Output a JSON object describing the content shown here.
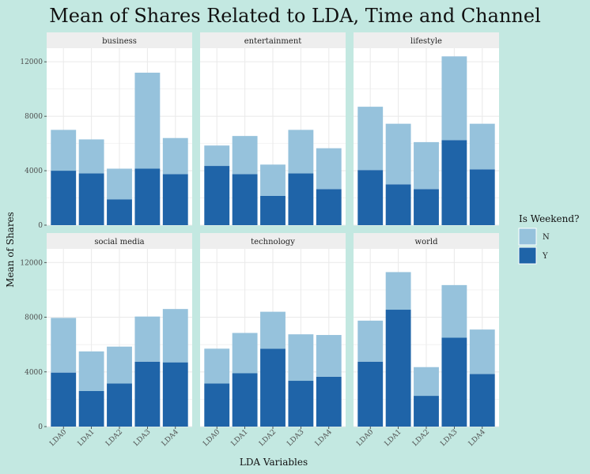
{
  "colors": {
    "background": "#c3e8e1",
    "panel": "#ffffff",
    "strip": "#eeeeee",
    "grid": "#ebebeb",
    "series_N": "#96c2dc",
    "series_Y": "#1f64a8"
  },
  "chart_data": {
    "type": "bar",
    "stacked": true,
    "title": "Mean of Shares Related to LDA, Time and Channel",
    "xlabel": "LDA Variables",
    "ylabel": "Mean of Shares",
    "ylim": [
      0,
      13000
    ],
    "yticks": [
      0,
      4000,
      8000,
      12000
    ],
    "ytick_labels": [
      "0",
      "4000",
      "8000",
      "12000"
    ],
    "grid": true,
    "categories": [
      "LDA0",
      "LDA1",
      "LDA2",
      "LDA3",
      "LDA4"
    ],
    "legend": {
      "title": "Is Weekend?",
      "position": "right",
      "entries": [
        "N",
        "Y"
      ]
    },
    "facets": [
      {
        "name": "business",
        "series": [
          {
            "name": "Y",
            "values": [
              4000,
              3800,
              1900,
              4150,
              3750
            ]
          },
          {
            "name": "N",
            "values": [
              3000,
              2500,
              2250,
              7050,
              2650
            ]
          }
        ]
      },
      {
        "name": "entertainment",
        "series": [
          {
            "name": "Y",
            "values": [
              4350,
              3750,
              2150,
              3800,
              2650
            ]
          },
          {
            "name": "N",
            "values": [
              1500,
              2800,
              2300,
              3200,
              3000
            ]
          }
        ]
      },
      {
        "name": "lifestyle",
        "series": [
          {
            "name": "Y",
            "values": [
              4050,
              3000,
              2650,
              6250,
              4100
            ]
          },
          {
            "name": "N",
            "values": [
              4650,
              4450,
              3450,
              6150,
              3350
            ]
          }
        ]
      },
      {
        "name": "social media",
        "series": [
          {
            "name": "Y",
            "values": [
              3950,
              2600,
              3150,
              4750,
              4700
            ]
          },
          {
            "name": "N",
            "values": [
              4000,
              2900,
              2700,
              3300,
              3900
            ]
          }
        ]
      },
      {
        "name": "technology",
        "series": [
          {
            "name": "Y",
            "values": [
              3150,
              3900,
              5700,
              3350,
              3650
            ]
          },
          {
            "name": "N",
            "values": [
              2550,
              2950,
              2700,
              3400,
              3050
            ]
          }
        ]
      },
      {
        "name": "world",
        "series": [
          {
            "name": "Y",
            "values": [
              4750,
              8550,
              2250,
              6500,
              3850
            ]
          },
          {
            "name": "N",
            "values": [
              3000,
              2750,
              2100,
              3850,
              3250
            ]
          }
        ]
      }
    ]
  }
}
